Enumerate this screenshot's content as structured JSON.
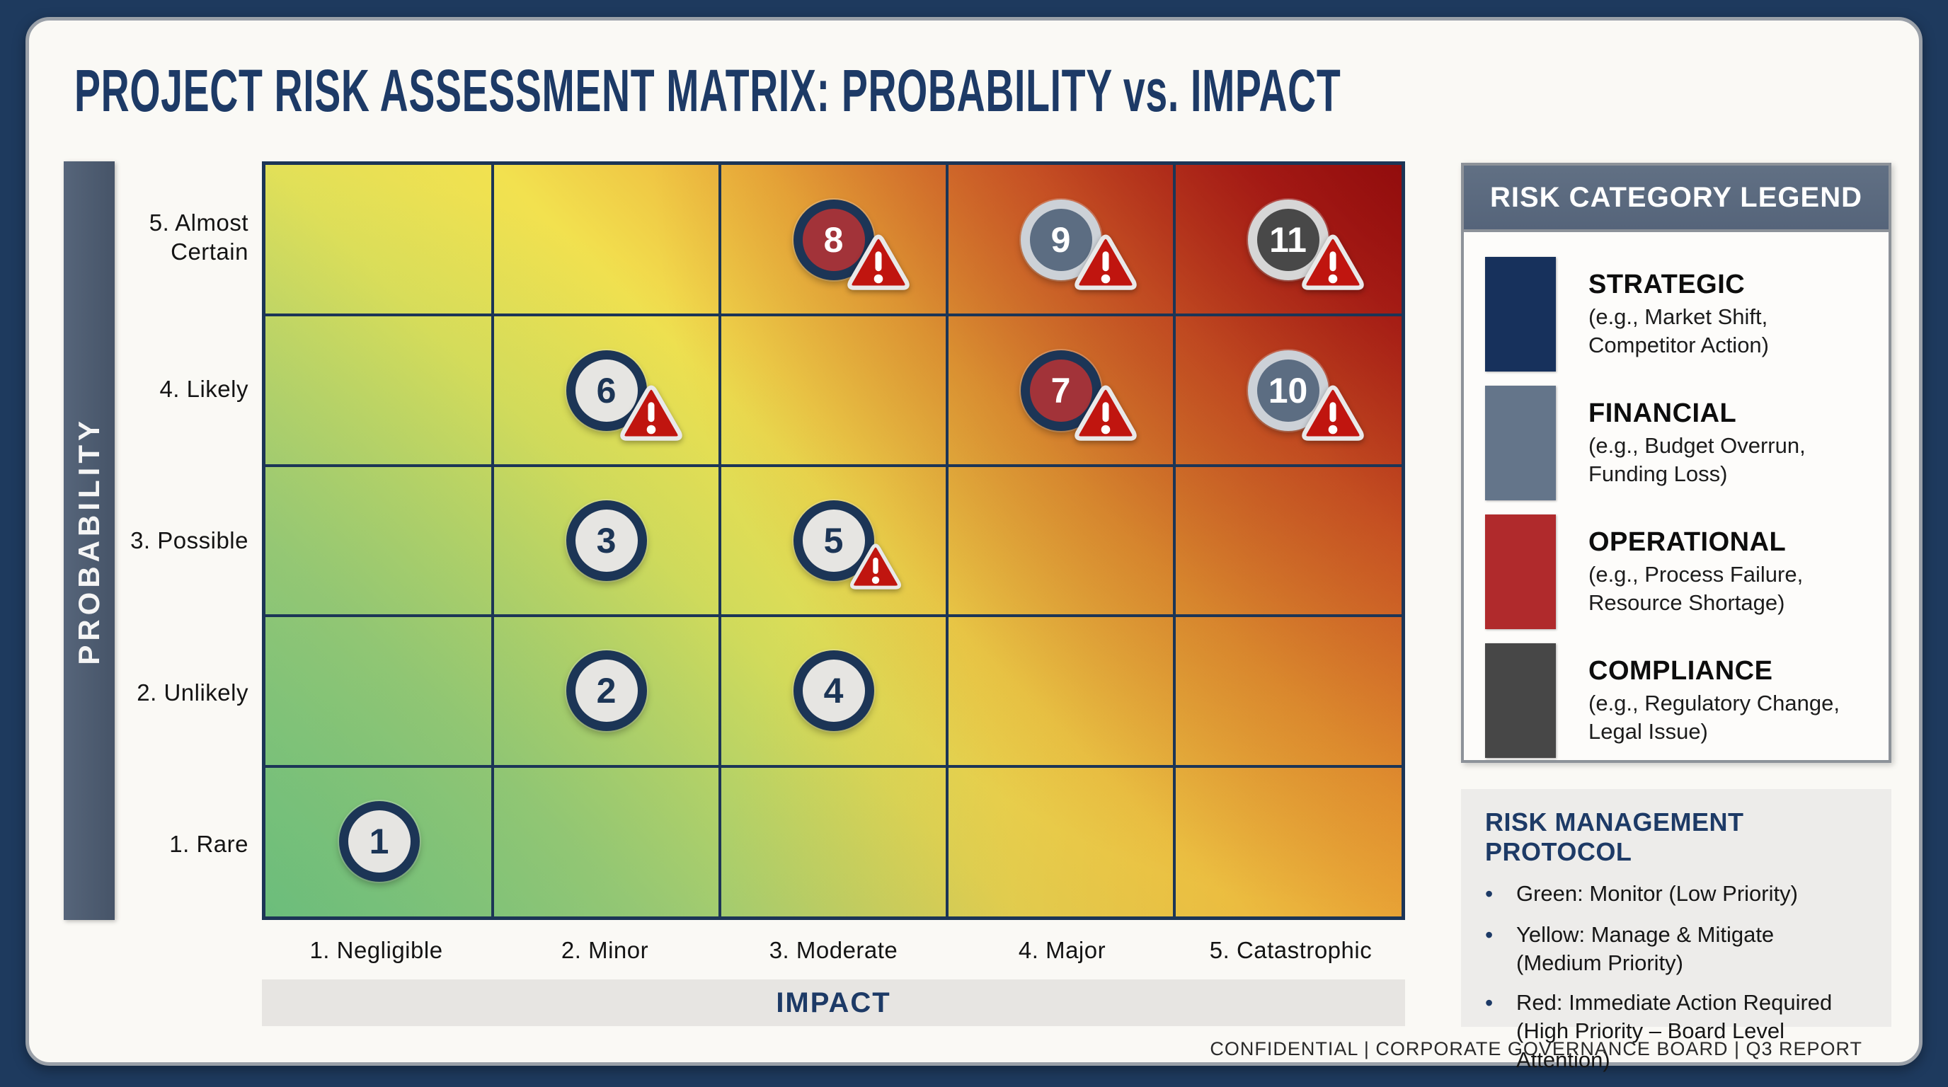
{
  "title": "PROJECT RISK ASSESSMENT MATRIX: PROBABILITY vs. IMPACT",
  "matrix": {
    "y_axis_title": "PROBABILITY",
    "x_axis_title": "IMPACT",
    "rows": [
      "5. Almost\nCertain",
      "4. Likely",
      "3. Possible",
      "2. Unlikely",
      "1. Rare"
    ],
    "columns": [
      "1. Negligible",
      "2. Minor",
      "3. Moderate",
      "4. Major",
      "5. Catastrophic"
    ],
    "markers": [
      {
        "id": "1",
        "row": 1,
        "col": 1,
        "category": "default",
        "warning": false
      },
      {
        "id": "2",
        "row": 2,
        "col": 2,
        "category": "default",
        "warning": false
      },
      {
        "id": "3",
        "row": 3,
        "col": 2,
        "category": "default",
        "warning": false
      },
      {
        "id": "4",
        "row": 2,
        "col": 3,
        "category": "default",
        "warning": false
      },
      {
        "id": "5",
        "row": 3,
        "col": 3,
        "category": "default",
        "warning": true,
        "warning_size": "small"
      },
      {
        "id": "6",
        "row": 4,
        "col": 2,
        "category": "default",
        "warning": true
      },
      {
        "id": "7",
        "row": 4,
        "col": 4,
        "category": "operational",
        "warning": true
      },
      {
        "id": "8",
        "row": 5,
        "col": 3,
        "category": "operational",
        "warning": true
      },
      {
        "id": "9",
        "row": 5,
        "col": 4,
        "category": "financial",
        "warning": true
      },
      {
        "id": "10",
        "row": 4,
        "col": 5,
        "category": "financial",
        "warning": true
      },
      {
        "id": "11",
        "row": 5,
        "col": 5,
        "category": "compliance",
        "warning": true
      }
    ]
  },
  "legend": {
    "header": "RISK CATEGORY LEGEND",
    "items": [
      {
        "name": "STRATEGIC",
        "desc": "(e.g., Market Shift,\nCompetitor Action)",
        "color": "#17315c"
      },
      {
        "name": "FINANCIAL",
        "desc": "(e.g., Budget Overrun,\nFunding Loss)",
        "color": "#64758a"
      },
      {
        "name": "OPERATIONAL",
        "desc": "(e.g., Process Failure,\nResource Shortage)",
        "color": "#b02a2c"
      },
      {
        "name": "COMPLIANCE",
        "desc": "(e.g., Regulatory Change,\nLegal Issue)",
        "color": "#474747"
      }
    ]
  },
  "protocol": {
    "header": "RISK MANAGEMENT PROTOCOL",
    "items": [
      "Green: Monitor (Low Priority)",
      "Yellow: Manage & Mitigate\n(Medium Priority)",
      "Red: Immediate Action Required\n(High Priority – Board Level Attention)"
    ]
  },
  "footer": "CONFIDENTIAL | CORPORATE GOVERNANCE BOARD | Q3 REPORT",
  "colors": {
    "frame_navy": "#1e3a5e",
    "card_background": "#faf9f5",
    "title_navy": "#1d3a66",
    "grid_line_navy": "#1c3556",
    "probability_bar_slate": "#4e5d70",
    "impact_bar_gray": "#e7e5e2",
    "gradient_low_green": "#7cc487",
    "gradient_mid_yellow": "#f2e14f",
    "gradient_high_red": "#9c1414",
    "warning_triangle_red": "#c0150f",
    "warning_triangle_border": "#e9e9e9",
    "marker_styles": {
      "default": {
        "fill": "#e6e5e2",
        "ring": "#1c3556",
        "text": "#1c3556"
      },
      "operational": {
        "fill": "#a23339",
        "ring": "#1c3556",
        "text": "#ffffff"
      },
      "financial": {
        "fill": "#5c6d82",
        "ring": "#ccd1d7",
        "text": "#ffffff"
      },
      "compliance": {
        "fill": "#484848",
        "ring": "#d6d6d6",
        "text": "#ffffff"
      }
    }
  }
}
